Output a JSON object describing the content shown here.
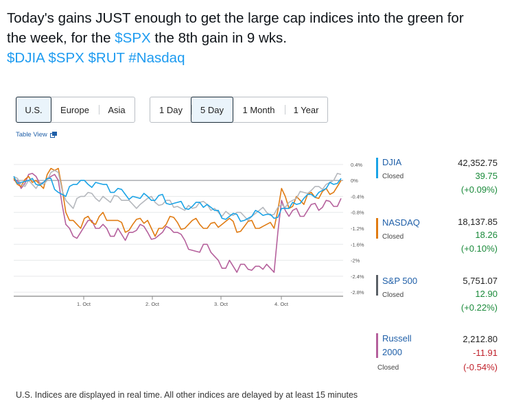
{
  "tweet": {
    "line1": "Today's gains JUST enough to get the large cap indices into the green for",
    "line2a": "the week, for the ",
    "line2_tag": "$SPX",
    "line2b": " the 8th gain in 9 wks.",
    "tags": [
      "$DJIA",
      "$SPX",
      "$RUT",
      "#Nasdaq"
    ]
  },
  "region_tabs": [
    {
      "label": "U.S.",
      "selected": true
    },
    {
      "label": "Europe",
      "selected": false
    },
    {
      "label": "Asia",
      "selected": false
    }
  ],
  "range_tabs": [
    {
      "label": "1 Day",
      "selected": false
    },
    {
      "label": "5 Day",
      "selected": true
    },
    {
      "label": "1 Month",
      "selected": false
    },
    {
      "label": "1 Year",
      "selected": false
    }
  ],
  "table_view": {
    "label": "Table View",
    "icon": "external-link-icon"
  },
  "chart_data": {
    "type": "line",
    "x_ticks": [
      "1. Oct",
      "2. Oct",
      "3. Oct",
      "4. Oct"
    ],
    "y_ticks": [
      "0.4%",
      "0%",
      "-0.4%",
      "-0.8%",
      "-1.2%",
      "-1.6%",
      "-2%",
      "-2.4%",
      "-2.8%"
    ],
    "ylim": [
      -2.9,
      0.5
    ],
    "series": [
      {
        "name": "DJIA",
        "color": "#1aa3e6",
        "values": [
          0.1,
          -0.05,
          0.0,
          -0.1,
          -0.05,
          0.05,
          -0.3,
          -0.4,
          -0.1,
          0.0,
          -0.1,
          -0.05,
          -0.1,
          -0.3,
          -0.2,
          -0.35,
          -0.4,
          -0.45,
          -0.4,
          -0.5,
          -0.35,
          -0.6,
          -0.55,
          -0.7,
          -0.65,
          -0.55,
          -0.6,
          -0.75,
          -0.95,
          -0.9,
          -0.85,
          -1.0,
          -0.9,
          -0.8,
          -0.85,
          -0.95,
          -0.7,
          -0.7,
          -0.6,
          -0.45,
          -0.35,
          -0.3,
          -0.2,
          -0.1,
          0.05
        ]
      },
      {
        "name": "S&P 500",
        "color": "#b5b8bd",
        "values": [
          0.1,
          -0.1,
          0.0,
          -0.2,
          -0.1,
          0.2,
          0.2,
          -0.5,
          -0.7,
          -0.4,
          -0.3,
          -0.45,
          -0.4,
          -0.55,
          -0.4,
          -0.5,
          -0.6,
          -0.6,
          -0.45,
          -0.55,
          -0.6,
          -0.5,
          -0.65,
          -0.75,
          -0.7,
          -0.55,
          -0.6,
          -0.7,
          -0.9,
          -0.85,
          -0.8,
          -0.9,
          -0.9,
          -0.75,
          -0.8,
          -0.85,
          -0.6,
          -0.55,
          -0.45,
          -0.3,
          -0.25,
          -0.15,
          -0.1,
          0.0,
          0.15
        ]
      },
      {
        "name": "NASDAQ",
        "color": "#e07b12",
        "values": [
          0.05,
          -0.15,
          0.1,
          0.0,
          -0.2,
          0.3,
          0.3,
          -0.8,
          -1.0,
          -1.2,
          -0.9,
          -1.1,
          -0.8,
          -1.0,
          -1.0,
          -1.3,
          -1.1,
          -0.95,
          -1.0,
          -1.4,
          -1.2,
          -0.9,
          -1.05,
          -1.2,
          -1.0,
          -1.1,
          -1.2,
          -1.05,
          -1.1,
          -0.95,
          -1.3,
          -1.15,
          -1.0,
          -1.2,
          -1.1,
          -1.2,
          -0.2,
          -0.7,
          -0.4,
          -0.6,
          -0.3,
          -0.45,
          -0.2,
          -0.3,
          0.0
        ]
      },
      {
        "name": "Russell 2000",
        "color": "#b5609c",
        "values": [
          0.0,
          -0.2,
          0.15,
          0.1,
          -0.05,
          0.1,
          0.0,
          -1.1,
          -1.4,
          -1.3,
          -1.0,
          -1.2,
          -1.1,
          -1.4,
          -1.2,
          -1.5,
          -1.3,
          -1.1,
          -1.3,
          -1.45,
          -1.3,
          -1.2,
          -1.3,
          -1.5,
          -1.75,
          -1.8,
          -1.6,
          -1.9,
          -2.2,
          -2.0,
          -2.3,
          -2.1,
          -2.25,
          -2.15,
          -2.1,
          -2.3,
          -0.5,
          -0.9,
          -0.7,
          -0.9,
          -0.6,
          -0.75,
          -0.5,
          -0.65,
          -0.45
        ]
      }
    ]
  },
  "indices": [
    {
      "name": "DJIA",
      "status": "Closed",
      "value": "42,352.75",
      "change": "39.75",
      "pct": "(+0.09%)",
      "direction": "up",
      "color": "#1aa3e6"
    },
    {
      "name": "NASDAQ",
      "status": "Closed",
      "value": "18,137.85",
      "change": "18.26",
      "pct": "(+0.10%)",
      "direction": "up",
      "color": "#e07b12"
    },
    {
      "name": "S&P 500",
      "status": "Closed",
      "value": "5,751.07",
      "change": "12.90",
      "pct": "(+0.22%)",
      "direction": "up",
      "color": "#5a6066"
    },
    {
      "name_line1": "Russell",
      "name_line2": "2000",
      "status": "Closed",
      "value": "2,212.80",
      "change": "-11.91",
      "pct": "(-0.54%)",
      "direction": "down",
      "color": "#b5609c"
    }
  ],
  "footer": "U.S. Indices are displayed in real time. All other indices are delayed by at least 15 minutes"
}
